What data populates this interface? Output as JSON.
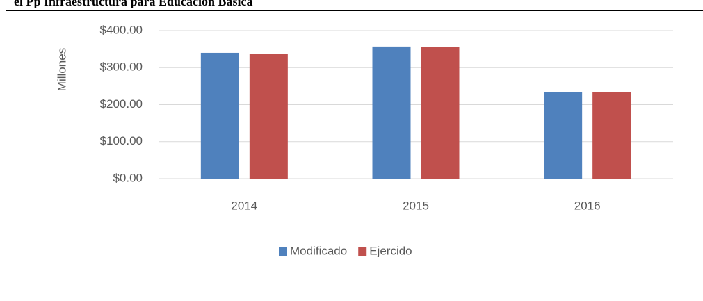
{
  "title": "el Pp  Infraestructura para Educación Básica",
  "chart_data": {
    "type": "bar",
    "y_label": "Millones",
    "categories": [
      "2014",
      "2015",
      "2016"
    ],
    "series": [
      {
        "name": "Modificado",
        "color": "#4f81bd",
        "values": [
          340,
          357,
          233
        ]
      },
      {
        "name": "Ejercido",
        "color": "#c0504d",
        "values": [
          338,
          356,
          233
        ]
      }
    ],
    "ylim": [
      0,
      400
    ],
    "yticks": [
      {
        "value": 0,
        "label": "$0.00"
      },
      {
        "value": 100,
        "label": "$100.00"
      },
      {
        "value": 200,
        "label": "$200.00"
      },
      {
        "value": 300,
        "label": "$300.00"
      },
      {
        "value": 400,
        "label": "$400.00"
      }
    ],
    "grid": true,
    "legend": "bottom"
  }
}
